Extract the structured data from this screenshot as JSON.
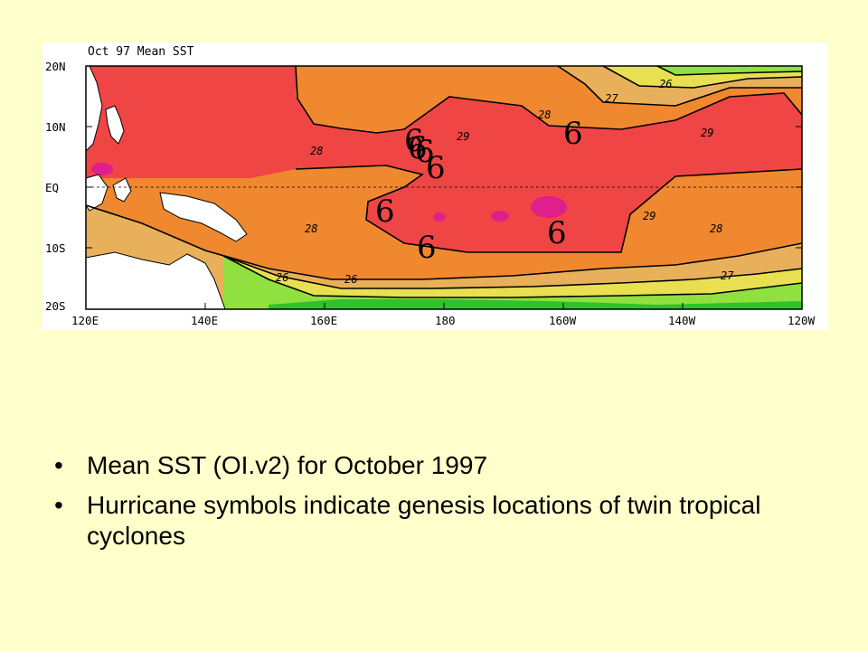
{
  "map": {
    "title": "Oct 97 Mean SST",
    "lat_labels": [
      "20N",
      "10N",
      "EQ",
      "10S",
      "20S"
    ],
    "lon_labels": [
      "120E",
      "140E",
      "160E",
      "180",
      "160W",
      "140W",
      "120W"
    ],
    "contour_labels": [
      "26",
      "27",
      "28",
      "29",
      "29",
      "29",
      "28",
      "28",
      "28",
      "27",
      "26",
      "26"
    ],
    "storm_symbol": "6",
    "storm_count": 8,
    "colors": {
      "red": "#f04545",
      "orange": "#f08830",
      "tan": "#e8b05a",
      "yellow": "#e8e050",
      "green": "#90e040",
      "dark_green": "#30c030",
      "magenta": "#e01e8c",
      "land": "#ffffff"
    }
  },
  "bullets": [
    "Mean SST (OI.v2) for October 1997",
    "Hurricane symbols indicate genesis locations of twin tropical cyclones"
  ],
  "bullet_marker": "•"
}
